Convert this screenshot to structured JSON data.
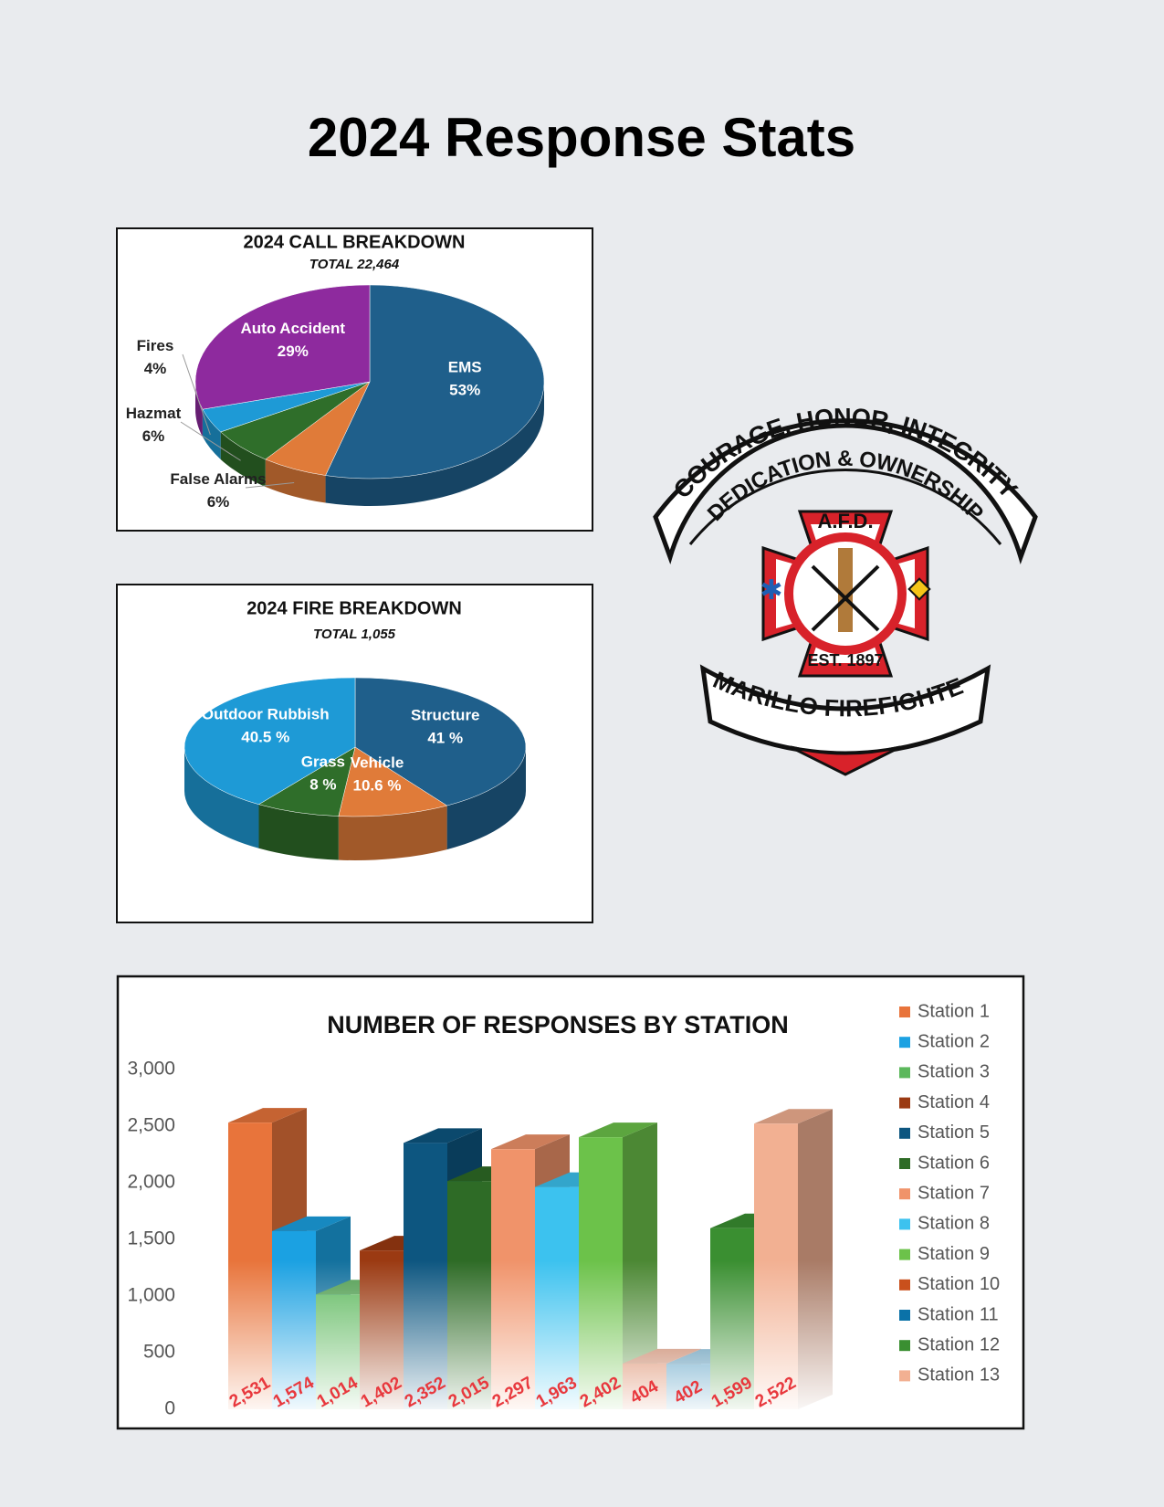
{
  "title": "2024 Response Stats",
  "chart_data": [
    {
      "type": "pie",
      "title": "2024 CALL BREAKDOWN",
      "subtitle": "TOTAL 22,464",
      "categories": [
        "EMS",
        "False Alarms",
        "Hazmat",
        "Fires",
        "Auto Accident"
      ],
      "values": [
        53,
        6,
        6,
        4,
        29
      ],
      "value_labels": [
        "53%",
        "6%",
        "6%",
        "4%",
        "29%"
      ],
      "colors": [
        "#1f5f8b",
        "#e07b39",
        "#2f6e2a",
        "#1e9ad6",
        "#8e2a9e"
      ]
    },
    {
      "type": "pie",
      "title": "2024 FIRE BREAKDOWN",
      "subtitle": "TOTAL 1,055",
      "categories": [
        "Structure",
        "Vehicle",
        "Grass",
        "Outdoor Rubbish"
      ],
      "values": [
        41,
        10.6,
        8,
        40.5
      ],
      "value_labels": [
        "41 %",
        "10.6 %",
        "8 %",
        "40.5 %"
      ],
      "colors": [
        "#1f5f8b",
        "#e07b39",
        "#2f6e2a",
        "#1e9ad6"
      ]
    },
    {
      "type": "bar",
      "title": "NUMBER OF RESPONSES BY STATION",
      "categories": [
        "Station 1",
        "Station 2",
        "Station 3",
        "Station 4",
        "Station 5",
        "Station 6",
        "Station 7",
        "Station 8",
        "Station 9",
        "Station 10",
        "Station 11",
        "Station 12",
        "Station 13"
      ],
      "values": [
        2531,
        1574,
        1014,
        1402,
        2352,
        2015,
        2297,
        1963,
        2402,
        404,
        402,
        1599,
        2522
      ],
      "value_labels": [
        "2,531",
        "1,574",
        "1,014",
        "1,402",
        "2,352",
        "2,015",
        "2,297",
        "1,963",
        "2,402",
        "404",
        "402",
        "1,599",
        "2,522"
      ],
      "colors": [
        "#e8743b",
        "#1ba1e2",
        "#5cb85c",
        "#9b3a12",
        "#0d5680",
        "#2e6b26",
        "#f0936a",
        "#3cc2ef",
        "#6cc24a",
        "#c9501c",
        "#0b72a8",
        "#3a8f31",
        "#f2b092"
      ],
      "ylim": [
        0,
        3000
      ],
      "yticks": [
        0,
        500,
        {
          "value": 1000,
          "label": "1,000"
        },
        {
          "value": 1500,
          "label": "1,500"
        },
        {
          "value": 2000,
          "label": "2,000"
        },
        {
          "value": 2500,
          "label": "2,500"
        },
        {
          "value": 3000,
          "label": "3,000"
        }
      ],
      "legend": "right"
    }
  ],
  "logo": {
    "motto_top": "COURAGE, HONOR, INTEGRITY",
    "motto_bottom": "DEDICATION & OWNERSHIP",
    "badge_top": "A.F.D.",
    "badge_bottom": "EST. 1897",
    "banner": "AMARILLO FIREFIGHTERS"
  }
}
